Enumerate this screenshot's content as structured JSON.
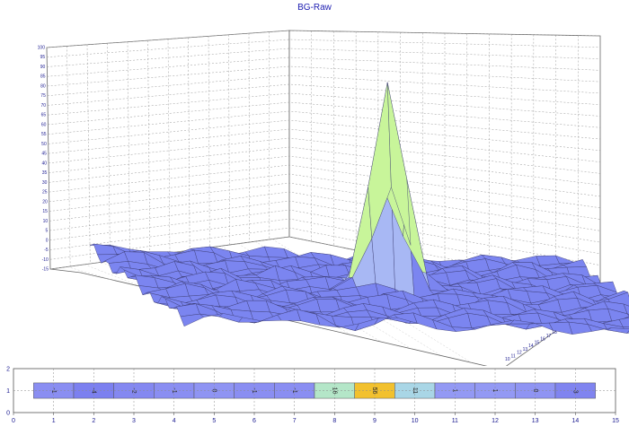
{
  "title": "BG-Raw",
  "chart_data": [
    {
      "type": "surface3d",
      "title": "BG-Raw",
      "zlim": [
        -15,
        100
      ],
      "z_ticks": [
        100,
        95,
        90,
        85,
        80,
        75,
        70,
        65,
        60,
        55,
        50,
        45,
        40,
        35,
        30,
        25,
        20,
        15,
        10,
        5,
        0,
        -5,
        -10,
        -15
      ],
      "x_ticks": [
        25,
        24,
        23,
        22,
        21,
        20,
        19,
        18,
        17,
        16,
        15,
        14,
        13,
        12,
        11,
        10
      ],
      "grid": true,
      "surface_color": "#7b85f0",
      "peak_color": "#c8f59a",
      "peak_value": 95
    },
    {
      "type": "heatmap",
      "title": "",
      "xlim": [
        0,
        15
      ],
      "ylim": [
        0,
        2
      ],
      "x_ticks": [
        0,
        1,
        2,
        3,
        4,
        5,
        6,
        7,
        8,
        9,
        10,
        11,
        12,
        13,
        14,
        15
      ],
      "y_ticks": [
        0,
        1,
        2
      ],
      "cells": [
        {
          "x": 1,
          "value": "-1",
          "color": "#8a8ef2"
        },
        {
          "x": 2,
          "value": "-4",
          "color": "#7c80f0"
        },
        {
          "x": 3,
          "value": "-2",
          "color": "#8488f1"
        },
        {
          "x": 4,
          "value": "-1",
          "color": "#8a8ef2"
        },
        {
          "x": 5,
          "value": "0",
          "color": "#8f94f3"
        },
        {
          "x": 6,
          "value": "-1",
          "color": "#8a8ef2"
        },
        {
          "x": 7,
          "value": "-1",
          "color": "#8a8ef2"
        },
        {
          "x": 8,
          "value": "16",
          "color": "#b4e6c8"
        },
        {
          "x": 9,
          "value": "56",
          "color": "#f2c12e"
        },
        {
          "x": 10,
          "value": "11",
          "color": "#a9d6e6"
        },
        {
          "x": 11,
          "value": "1",
          "color": "#9399f4"
        },
        {
          "x": 12,
          "value": "1",
          "color": "#9399f4"
        },
        {
          "x": 13,
          "value": "0",
          "color": "#8f94f3"
        },
        {
          "x": 14,
          "value": "-3",
          "color": "#8084f0"
        }
      ]
    }
  ]
}
